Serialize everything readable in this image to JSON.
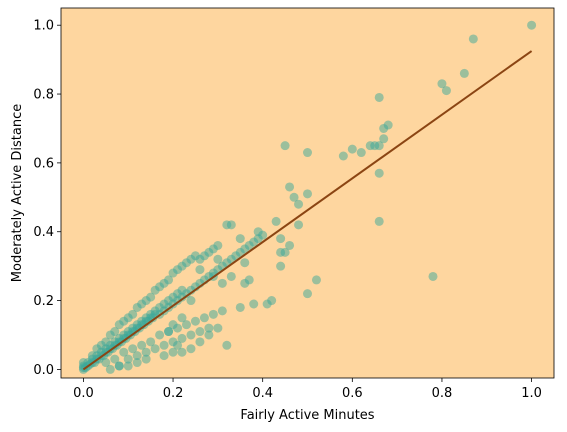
{
  "chart_data": {
    "type": "scatter",
    "title": "",
    "xlabel": "Fairly Active Minutes",
    "ylabel": "Moderately Active Distance",
    "xlim": [
      -0.05,
      1.05
    ],
    "ylim": [
      -0.025,
      1.05
    ],
    "xticks": [
      0.0,
      0.2,
      0.4,
      0.6,
      0.8,
      1.0
    ],
    "xtick_labels": [
      "0.0",
      "0.2",
      "0.4",
      "0.6",
      "0.8",
      "1.0"
    ],
    "yticks": [
      0.0,
      0.2,
      0.4,
      0.6,
      0.8,
      1.0
    ],
    "ytick_labels": [
      "0.0",
      "0.2",
      "0.4",
      "0.6",
      "0.8",
      "1.0"
    ],
    "grid": false,
    "colors": {
      "background": "#fed69f",
      "points": "#3aa89a",
      "regression_line": "#8b4513"
    },
    "regression_line": {
      "x": [
        0.0,
        1.0
      ],
      "y": [
        0.0,
        0.925
      ]
    },
    "series": [
      {
        "x": [
          0.0,
          0.0,
          0.0,
          0.0,
          0.005,
          0.01,
          0.01,
          0.015,
          0.02,
          0.02,
          0.025,
          0.03,
          0.03,
          0.035,
          0.04,
          0.04,
          0.045,
          0.05,
          0.05,
          0.055,
          0.06,
          0.06,
          0.065,
          0.07,
          0.07,
          0.075,
          0.08,
          0.08,
          0.085,
          0.09,
          0.09,
          0.095,
          0.1,
          0.1,
          0.105,
          0.11,
          0.11,
          0.115,
          0.12,
          0.12,
          0.125,
          0.13,
          0.13,
          0.135,
          0.14,
          0.14,
          0.145,
          0.15,
          0.15,
          0.155,
          0.16,
          0.16,
          0.17,
          0.17,
          0.18,
          0.18,
          0.19,
          0.19,
          0.2,
          0.2,
          0.21,
          0.21,
          0.22,
          0.22,
          0.23,
          0.24,
          0.25,
          0.26,
          0.27,
          0.28,
          0.29,
          0.3,
          0.31,
          0.32,
          0.33,
          0.34,
          0.35,
          0.36,
          0.37,
          0.38,
          0.39,
          0.4,
          0.02,
          0.03,
          0.04,
          0.05,
          0.06,
          0.07,
          0.08,
          0.09,
          0.1,
          0.11,
          0.12,
          0.13,
          0.14,
          0.15,
          0.16,
          0.17,
          0.18,
          0.19,
          0.2,
          0.21,
          0.22,
          0.23,
          0.24,
          0.25,
          0.26,
          0.27,
          0.28,
          0.29,
          0.3,
          0.05,
          0.07,
          0.09,
          0.11,
          0.13,
          0.15,
          0.17,
          0.19,
          0.21,
          0.23,
          0.25,
          0.27,
          0.29,
          0.31,
          0.08,
          0.1,
          0.12,
          0.14,
          0.16,
          0.18,
          0.2,
          0.22,
          0.24,
          0.26,
          0.28,
          0.06,
          0.08,
          0.1,
          0.12,
          0.14,
          0.18,
          0.2,
          0.22,
          0.24,
          0.26,
          0.28,
          0.3,
          0.32,
          0.35,
          0.38,
          0.42,
          0.36,
          0.37,
          0.32,
          0.43,
          0.31,
          0.33,
          0.35,
          0.44,
          0.45,
          0.46,
          0.47,
          0.5,
          0.48,
          0.5,
          0.41,
          0.5,
          0.52,
          0.45,
          0.46,
          0.58,
          0.6,
          0.62,
          0.64,
          0.65,
          0.66,
          0.67,
          0.66,
          0.68,
          0.66,
          0.66,
          0.67,
          0.78,
          0.8,
          0.81,
          0.85,
          0.87,
          1.0,
          0.44,
          0.36,
          0.3,
          0.26,
          0.24,
          0.22,
          0.2,
          0.19,
          0.21,
          0.29,
          0.33,
          0.39,
          0.44,
          0.48
        ],
        "y": [
          0.0,
          0.005,
          0.01,
          0.02,
          0.005,
          0.01,
          0.02,
          0.015,
          0.02,
          0.03,
          0.02,
          0.03,
          0.04,
          0.03,
          0.04,
          0.05,
          0.04,
          0.05,
          0.06,
          0.05,
          0.06,
          0.07,
          0.06,
          0.07,
          0.08,
          0.07,
          0.08,
          0.09,
          0.08,
          0.09,
          0.1,
          0.09,
          0.1,
          0.11,
          0.1,
          0.11,
          0.12,
          0.11,
          0.12,
          0.13,
          0.12,
          0.13,
          0.14,
          0.13,
          0.14,
          0.15,
          0.14,
          0.15,
          0.16,
          0.15,
          0.16,
          0.17,
          0.16,
          0.18,
          0.17,
          0.19,
          0.18,
          0.2,
          0.19,
          0.21,
          0.2,
          0.22,
          0.21,
          0.23,
          0.22,
          0.23,
          0.24,
          0.25,
          0.26,
          0.27,
          0.28,
          0.29,
          0.3,
          0.31,
          0.32,
          0.33,
          0.34,
          0.35,
          0.36,
          0.37,
          0.38,
          0.39,
          0.04,
          0.06,
          0.07,
          0.08,
          0.1,
          0.11,
          0.13,
          0.14,
          0.15,
          0.16,
          0.18,
          0.19,
          0.2,
          0.21,
          0.23,
          0.24,
          0.25,
          0.26,
          0.28,
          0.29,
          0.3,
          0.31,
          0.32,
          0.33,
          0.32,
          0.33,
          0.34,
          0.35,
          0.36,
          0.02,
          0.03,
          0.05,
          0.06,
          0.07,
          0.08,
          0.1,
          0.11,
          0.12,
          0.13,
          0.14,
          0.15,
          0.16,
          0.17,
          0.01,
          0.03,
          0.04,
          0.05,
          0.06,
          0.07,
          0.08,
          0.09,
          0.1,
          0.11,
          0.12,
          0.0,
          0.01,
          0.01,
          0.02,
          0.03,
          0.04,
          0.05,
          0.05,
          0.06,
          0.08,
          0.1,
          0.12,
          0.07,
          0.18,
          0.19,
          0.2,
          0.25,
          0.26,
          0.42,
          0.43,
          0.25,
          0.27,
          0.38,
          0.3,
          0.65,
          0.53,
          0.5,
          0.51,
          0.48,
          0.63,
          0.19,
          0.22,
          0.26,
          0.34,
          0.36,
          0.62,
          0.64,
          0.63,
          0.65,
          0.65,
          0.79,
          0.7,
          0.65,
          0.71,
          0.57,
          0.43,
          0.67,
          0.27,
          0.83,
          0.81,
          0.86,
          0.96,
          1.0,
          0.38,
          0.31,
          0.32,
          0.29,
          0.2,
          0.15,
          0.13,
          0.11,
          0.07,
          0.27,
          0.42,
          0.4,
          0.34,
          0.42
        ]
      }
    ]
  }
}
